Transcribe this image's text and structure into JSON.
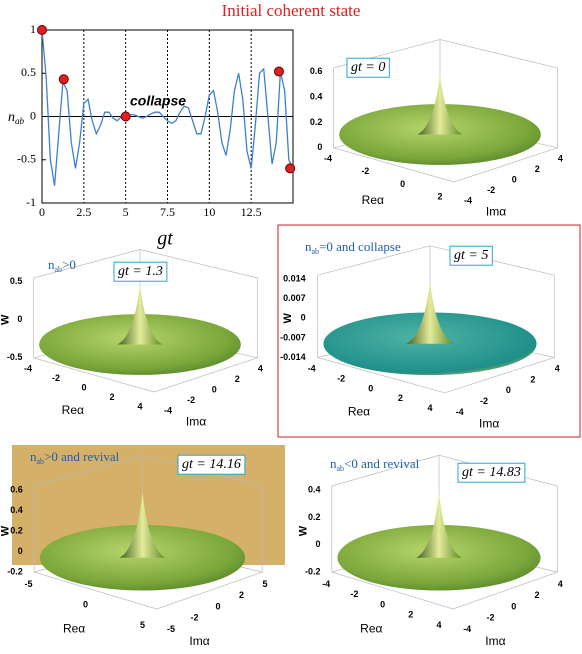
{
  "chart_data": {
    "type": "line",
    "title": "Initial coherent state",
    "xlabel": "gt",
    "ylabel": "n",
    "ylabel_sub": "ab",
    "annotation": "collapse",
    "x": [
      0,
      0.25,
      0.5,
      0.75,
      1,
      1.25,
      1.5,
      1.75,
      2,
      2.25,
      2.5,
      2.75,
      3,
      3.25,
      3.5,
      3.75,
      4,
      4.25,
      4.5,
      4.75,
      5,
      5.25,
      5.5,
      5.75,
      6,
      6.25,
      6.5,
      6.75,
      7,
      7.25,
      7.5,
      7.75,
      8,
      8.25,
      8.5,
      8.75,
      9,
      9.25,
      9.5,
      9.75,
      10,
      10.25,
      10.5,
      10.75,
      11,
      11.25,
      11.5,
      11.75,
      12,
      12.25,
      12.5,
      12.75,
      13,
      13.25,
      13.5,
      13.75,
      14,
      14.25,
      14.5,
      14.75,
      15
    ],
    "series": [
      {
        "color": "#3f7fd0",
        "values": [
          1,
          0.45,
          -0.5,
          -0.8,
          -0.2,
          0.4,
          0.3,
          -0.3,
          -0.6,
          -0.3,
          0.15,
          0.2,
          -0.05,
          -0.2,
          -0.1,
          0.05,
          0.05,
          -0.02,
          -0.05,
          0,
          0,
          0.02,
          0.02,
          0,
          -0.02,
          0,
          0.03,
          0.05,
          0.05,
          0,
          -0.05,
          -0.08,
          -0.05,
          0.05,
          0.12,
          0.1,
          -0.05,
          -0.2,
          -0.2,
          0,
          0.25,
          0.3,
          0.05,
          -0.3,
          -0.45,
          -0.15,
          0.3,
          0.5,
          0.2,
          -0.4,
          -0.6,
          -0.1,
          0.5,
          0.55,
          0,
          -0.55,
          -0.3,
          0.52,
          0.3,
          -0.5,
          -0.6
        ]
      }
    ],
    "points": {
      "color": "#e02020",
      "x": [
        0,
        1.3,
        5,
        14.16,
        14.83
      ],
      "values": [
        1,
        0.43,
        0,
        0.52,
        -0.6
      ]
    },
    "xlim": [
      0,
      15
    ],
    "ylim": [
      -1,
      1
    ],
    "xticks": [
      0,
      2.5,
      5,
      7.5,
      10,
      12.5
    ],
    "yticks": [
      -1,
      -0.5,
      0,
      0.5,
      1
    ],
    "grid": true
  },
  "panels": [
    {
      "label": "gt = 0",
      "zticks": [
        "0.6",
        "0.4",
        "0.2",
        "0"
      ],
      "xticks": [
        "-4",
        "-2",
        "0",
        "2"
      ],
      "yticks": [
        "-4",
        "-2",
        "0",
        "2",
        "4"
      ],
      "xlabel": "Reα",
      "ylabel": "Imα"
    },
    {
      "label": "gt = 1.3",
      "caption_symbol": "n",
      "caption_sub": "ab",
      "caption_text": ">0",
      "zticks": [
        "0.5",
        "0",
        "-0.5"
      ],
      "xticks": [
        "-4",
        "-2",
        "0",
        "2",
        "4"
      ],
      "yticks": [
        "-4",
        "-2",
        "0",
        "2",
        "4"
      ],
      "xlabel": "Reα",
      "ylabel": "Imα",
      "zlabel": "W"
    },
    {
      "label": "gt = 5",
      "caption_symbol": "n",
      "caption_sub": "ab",
      "caption_text": "=0 and collapse",
      "zticks": [
        "0.014",
        "0.007",
        "0",
        "-0.007",
        "-0.014"
      ],
      "xticks": [
        "-4",
        "-2",
        "0",
        "2",
        "4"
      ],
      "yticks": [
        "-4",
        "-2",
        "0",
        "2",
        "4"
      ],
      "xlabel": "Reα",
      "ylabel": "Imα",
      "zlabel": "W"
    },
    {
      "label": "gt = 14.16",
      "caption_symbol": "n",
      "caption_sub": "ab",
      "caption_text": ">0 and revival",
      "zticks": [
        "0.6",
        "0.4",
        "0.2",
        "0",
        "-0.2"
      ],
      "xticks": [
        "-5",
        "0",
        "5"
      ],
      "yticks": [
        "-5",
        "-2",
        "0",
        "2",
        "5"
      ],
      "xlabel": "Reα",
      "ylabel": "Imα",
      "zlabel": "W"
    },
    {
      "label": "gt = 14.83",
      "caption_symbol": "n",
      "caption_sub": "ab",
      "caption_text": "<0 and revival",
      "zticks": [
        "0.4",
        "0.2",
        "0",
        "-0.2"
      ],
      "xticks": [
        "-4",
        "-2",
        "0",
        "2",
        "4"
      ],
      "yticks": [
        "-4",
        "-2",
        "0",
        "2",
        "4"
      ],
      "xlabel": "Reα",
      "ylabel": "Imα",
      "zlabel": "W"
    }
  ]
}
